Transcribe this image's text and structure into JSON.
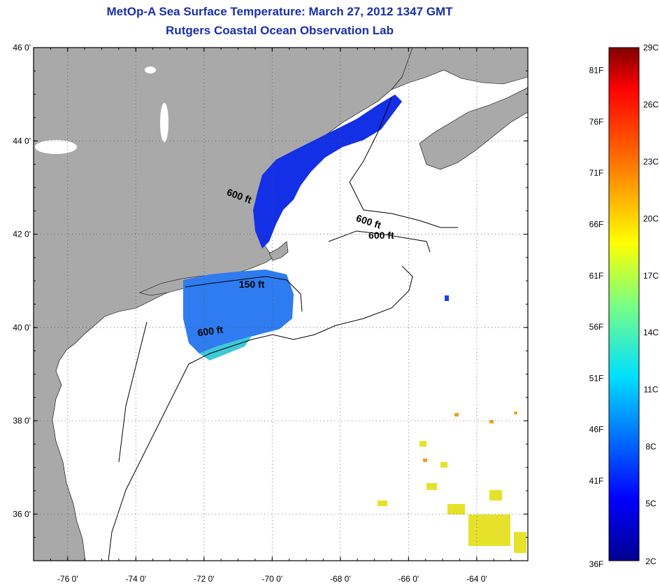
{
  "title": {
    "line1": "MetOp-A Sea Surface Temperature:  March 27, 2012 1347 GMT",
    "line2": "Rutgers Coastal Ocean Observation Lab"
  },
  "map": {
    "lat_range": [
      35,
      46
    ],
    "lon_range": [
      -77,
      -62.5
    ],
    "lat_ticks": [
      {
        "value": 46,
        "label": "46 0'"
      },
      {
        "value": 44,
        "label": "44 0'"
      },
      {
        "value": 42,
        "label": "42 0'"
      },
      {
        "value": 40,
        "label": "40 0'"
      },
      {
        "value": 38,
        "label": "38 0'"
      },
      {
        "value": 36,
        "label": "36 0'"
      }
    ],
    "lon_ticks": [
      {
        "value": -76,
        "label": "-76 0'"
      },
      {
        "value": -74,
        "label": "-74 0'"
      },
      {
        "value": -72,
        "label": "-72 0'"
      },
      {
        "value": -70,
        "label": "-70 0'"
      },
      {
        "value": -68,
        "label": "-68 0'"
      },
      {
        "value": -66,
        "label": "-66 0'"
      },
      {
        "value": -64,
        "label": "-64 0'"
      }
    ],
    "grid": true,
    "colors": {
      "land": "#a9a9a9",
      "ocean": "#ffffff",
      "cold_sst": "#0a1fe0",
      "mid_sst": "#2f8cf0",
      "warm_sst": "#e8e020"
    },
    "contour_labels": [
      {
        "text": "600 ft",
        "lon": -71.0,
        "lat": 42.75,
        "angle": 20
      },
      {
        "text": "600 ft",
        "lon": -67.2,
        "lat": 42.2,
        "angle": 18
      },
      {
        "text": "600 ft",
        "lon": -66.8,
        "lat": 41.9,
        "angle": 0
      },
      {
        "text": "150 ft",
        "lon": -70.6,
        "lat": 40.85,
        "angle": 0
      },
      {
        "text": "600 ft",
        "lon": -71.8,
        "lat": 39.85,
        "angle": -8
      }
    ]
  },
  "colorbar": {
    "min_c": 2,
    "max_c": 29,
    "celsius_ticks": [
      "2C",
      "5C",
      "8C",
      "11C",
      "14C",
      "17C",
      "20C",
      "23C",
      "26C",
      "29C"
    ],
    "fahrenheit_ticks": [
      "36F",
      "41F",
      "46F",
      "51F",
      "56F",
      "61F",
      "66F",
      "71F",
      "76F",
      "81F"
    ]
  }
}
